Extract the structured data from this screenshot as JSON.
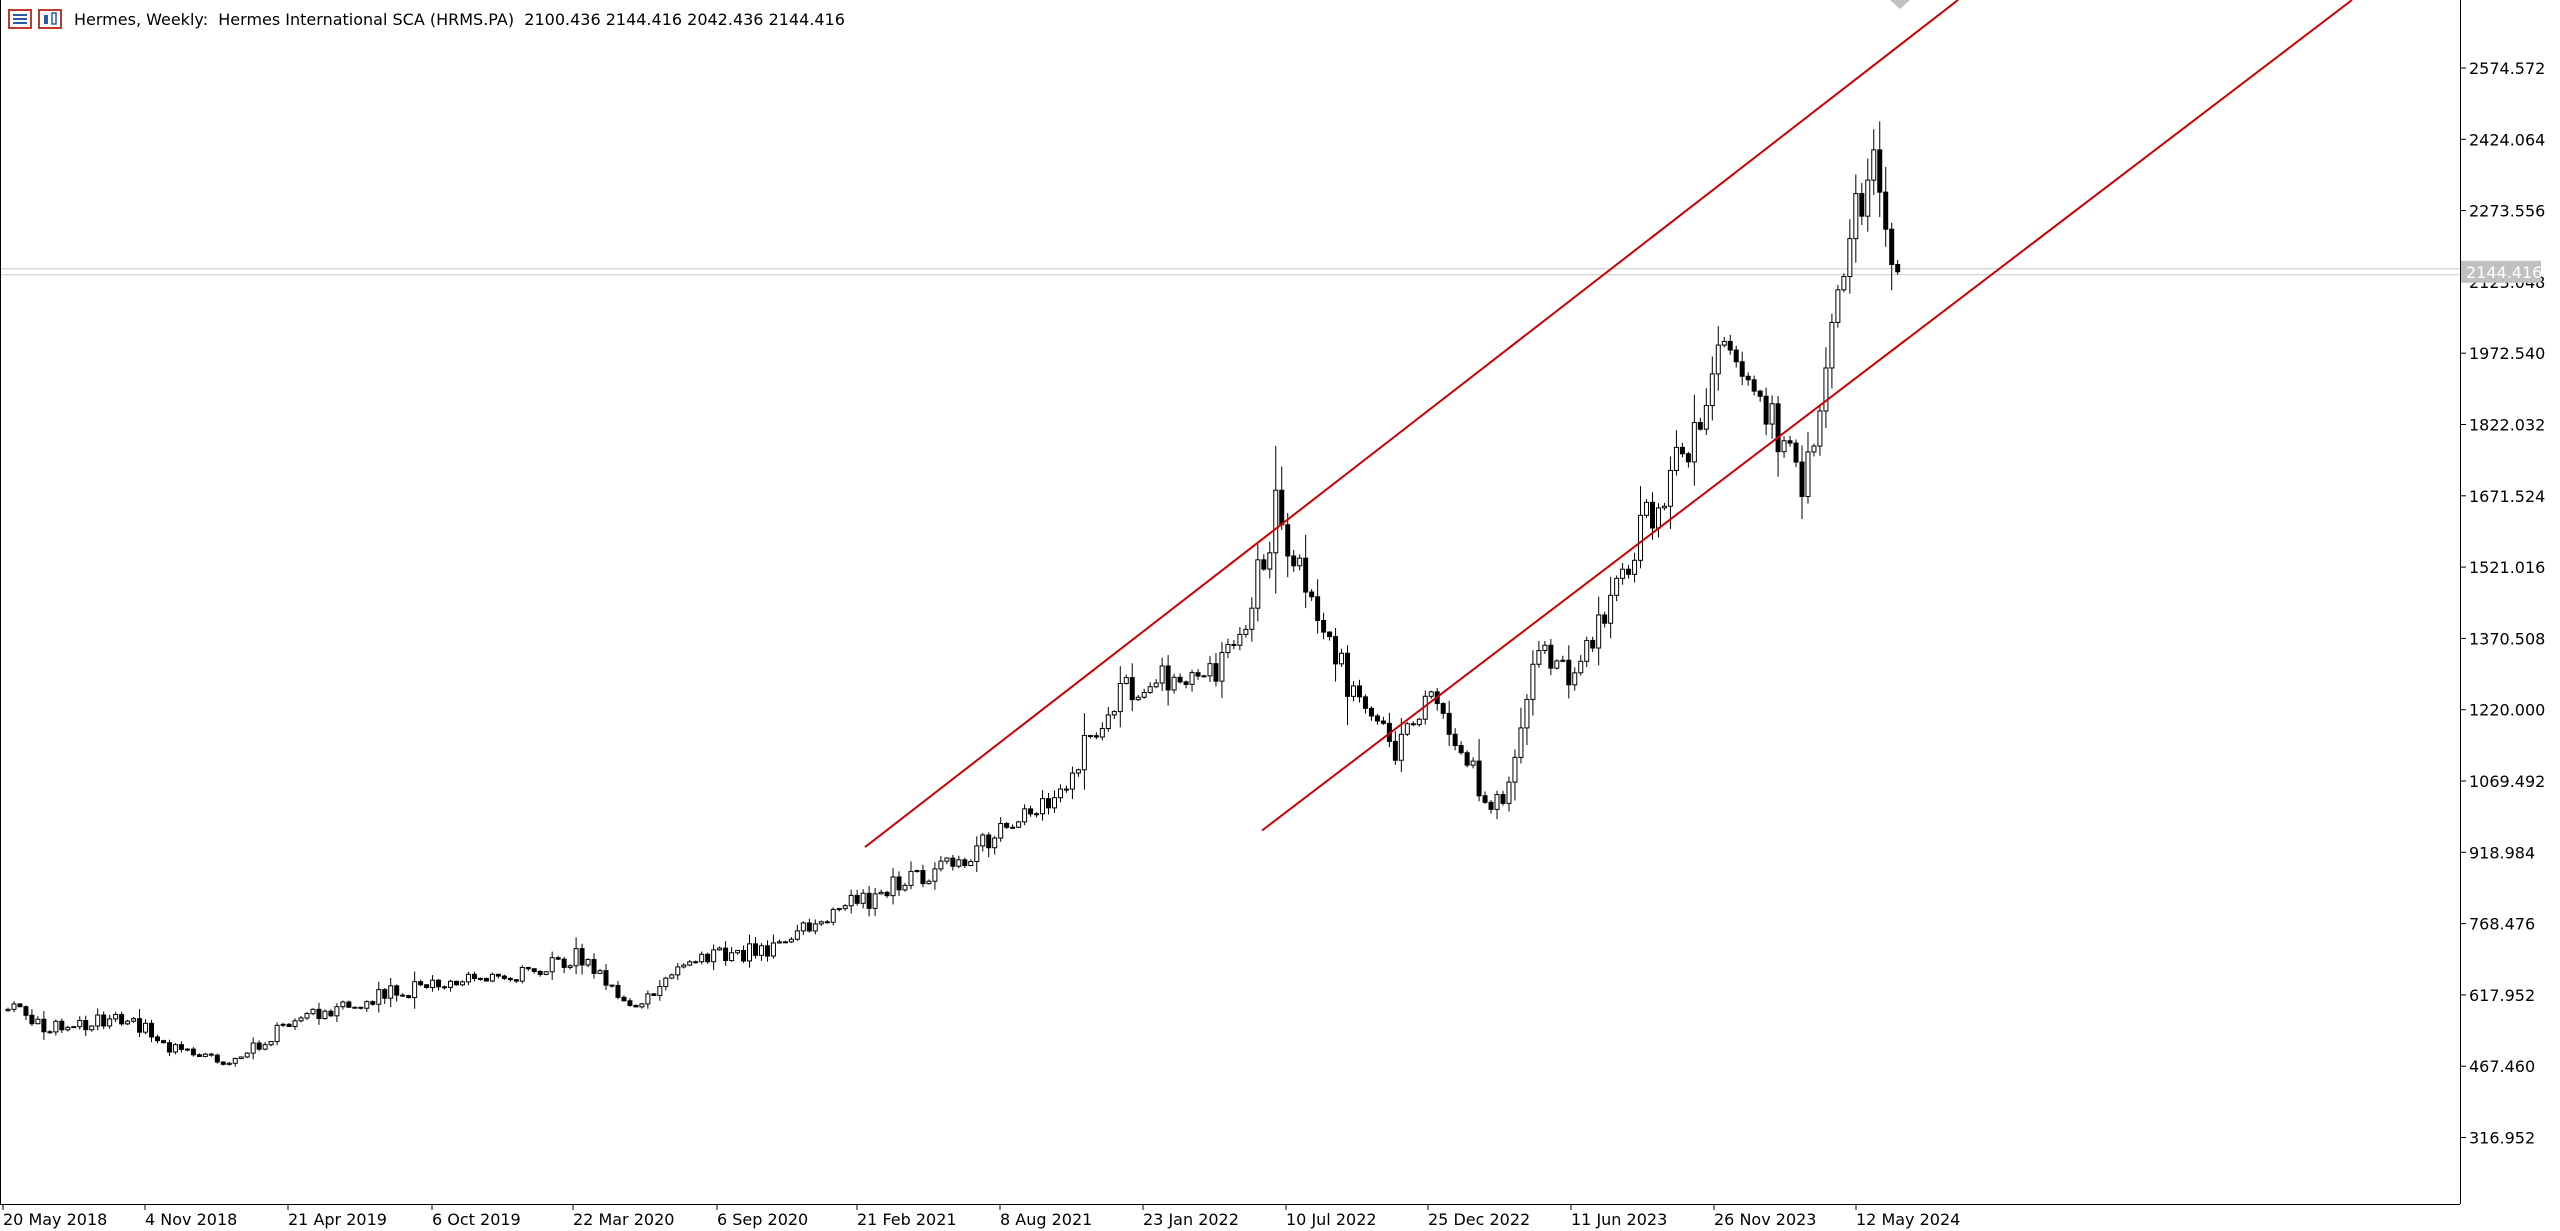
{
  "header": {
    "symbol": "Hermes, Weekly:",
    "description": "Hermes International SCA (HRMS.PA)",
    "ohlc": "2100.436 2144.416 2042.436 2144.416"
  },
  "colors": {
    "background": "#ffffff",
    "axis": "#000000",
    "candle_up_fill": "#ffffff",
    "candle_down_fill": "#000000",
    "candle_outline": "#000000",
    "channel": "#cc0000",
    "price_line": "#c8c8c8",
    "last_price_label_bg": "#c0c0c0",
    "last_price_label_text": "#ffffff"
  },
  "icons": [
    "chart-list-icon",
    "chart-type-icon"
  ],
  "chart_data": {
    "type": "candlestick",
    "symbol": "Hermes International SCA (HRMS.PA)",
    "timeframe": "Weekly",
    "last_price": "2144.416",
    "ylim": [
      214.5,
      2740
    ],
    "y_ticks": [
      "2574.572",
      "2424.064",
      "2273.556",
      "2123.048",
      "1972.540",
      "1822.032",
      "1671.524",
      "1521.016",
      "1370.508",
      "1220.000",
      "1069.492",
      "918.984",
      "768.476",
      "617.952",
      "467.460",
      "316.952"
    ],
    "x_ticks": [
      "20 May 2018",
      "4 Nov 2018",
      "21 Apr 2019",
      "6 Oct 2019",
      "22 Mar 2020",
      "6 Sep 2020",
      "21 Feb 2021",
      "8 Aug 2021",
      "23 Jan 2022",
      "10 Jul 2022",
      "25 Dec 2022",
      "11 Jun 2023",
      "26 Nov 2023",
      "12 May 2024"
    ],
    "bars": 316,
    "anchors": [
      {
        "bar": 0,
        "price": 600
      },
      {
        "bar": 6,
        "price": 550
      },
      {
        "bar": 20,
        "price": 570
      },
      {
        "bar": 28,
        "price": 500
      },
      {
        "bar": 36,
        "price": 470
      },
      {
        "bar": 48,
        "price": 565
      },
      {
        "bar": 62,
        "price": 618
      },
      {
        "bar": 84,
        "price": 658
      },
      {
        "bar": 96,
        "price": 700
      },
      {
        "bar": 100,
        "price": 642
      },
      {
        "bar": 106,
        "price": 595
      },
      {
        "bar": 114,
        "price": 702
      },
      {
        "bar": 126,
        "price": 710
      },
      {
        "bar": 140,
        "price": 800
      },
      {
        "bar": 160,
        "price": 910
      },
      {
        "bar": 176,
        "price": 1060
      },
      {
        "bar": 186,
        "price": 1250
      },
      {
        "bar": 196,
        "price": 1300
      },
      {
        "bar": 202,
        "price": 1290
      },
      {
        "bar": 208,
        "price": 1450
      },
      {
        "bar": 212,
        "price": 1640
      },
      {
        "bar": 220,
        "price": 1410
      },
      {
        "bar": 224,
        "price": 1280
      },
      {
        "bar": 232,
        "price": 1140
      },
      {
        "bar": 238,
        "price": 1260
      },
      {
        "bar": 244,
        "price": 1100
      },
      {
        "bar": 250,
        "price": 1000
      },
      {
        "bar": 255,
        "price": 1340
      },
      {
        "bar": 262,
        "price": 1270
      },
      {
        "bar": 268,
        "price": 1450
      },
      {
        "bar": 274,
        "price": 1620
      },
      {
        "bar": 280,
        "price": 1750
      },
      {
        "bar": 286,
        "price": 1970
      },
      {
        "bar": 292,
        "price": 1910
      },
      {
        "bar": 300,
        "price": 1700
      },
      {
        "bar": 304,
        "price": 1950
      },
      {
        "bar": 308,
        "price": 2250
      },
      {
        "bar": 312,
        "price": 2380
      },
      {
        "bar": 316,
        "price": 2144
      }
    ],
    "channel_lines": [
      {
        "x1": "22 Feb 2021",
        "y1": 930,
        "x2": "after 12 May 2024",
        "y2": 2760
      },
      {
        "x1": "May 2022",
        "y1": 965,
        "x2": "after 12 May 2024",
        "y2": 2760
      }
    ]
  }
}
